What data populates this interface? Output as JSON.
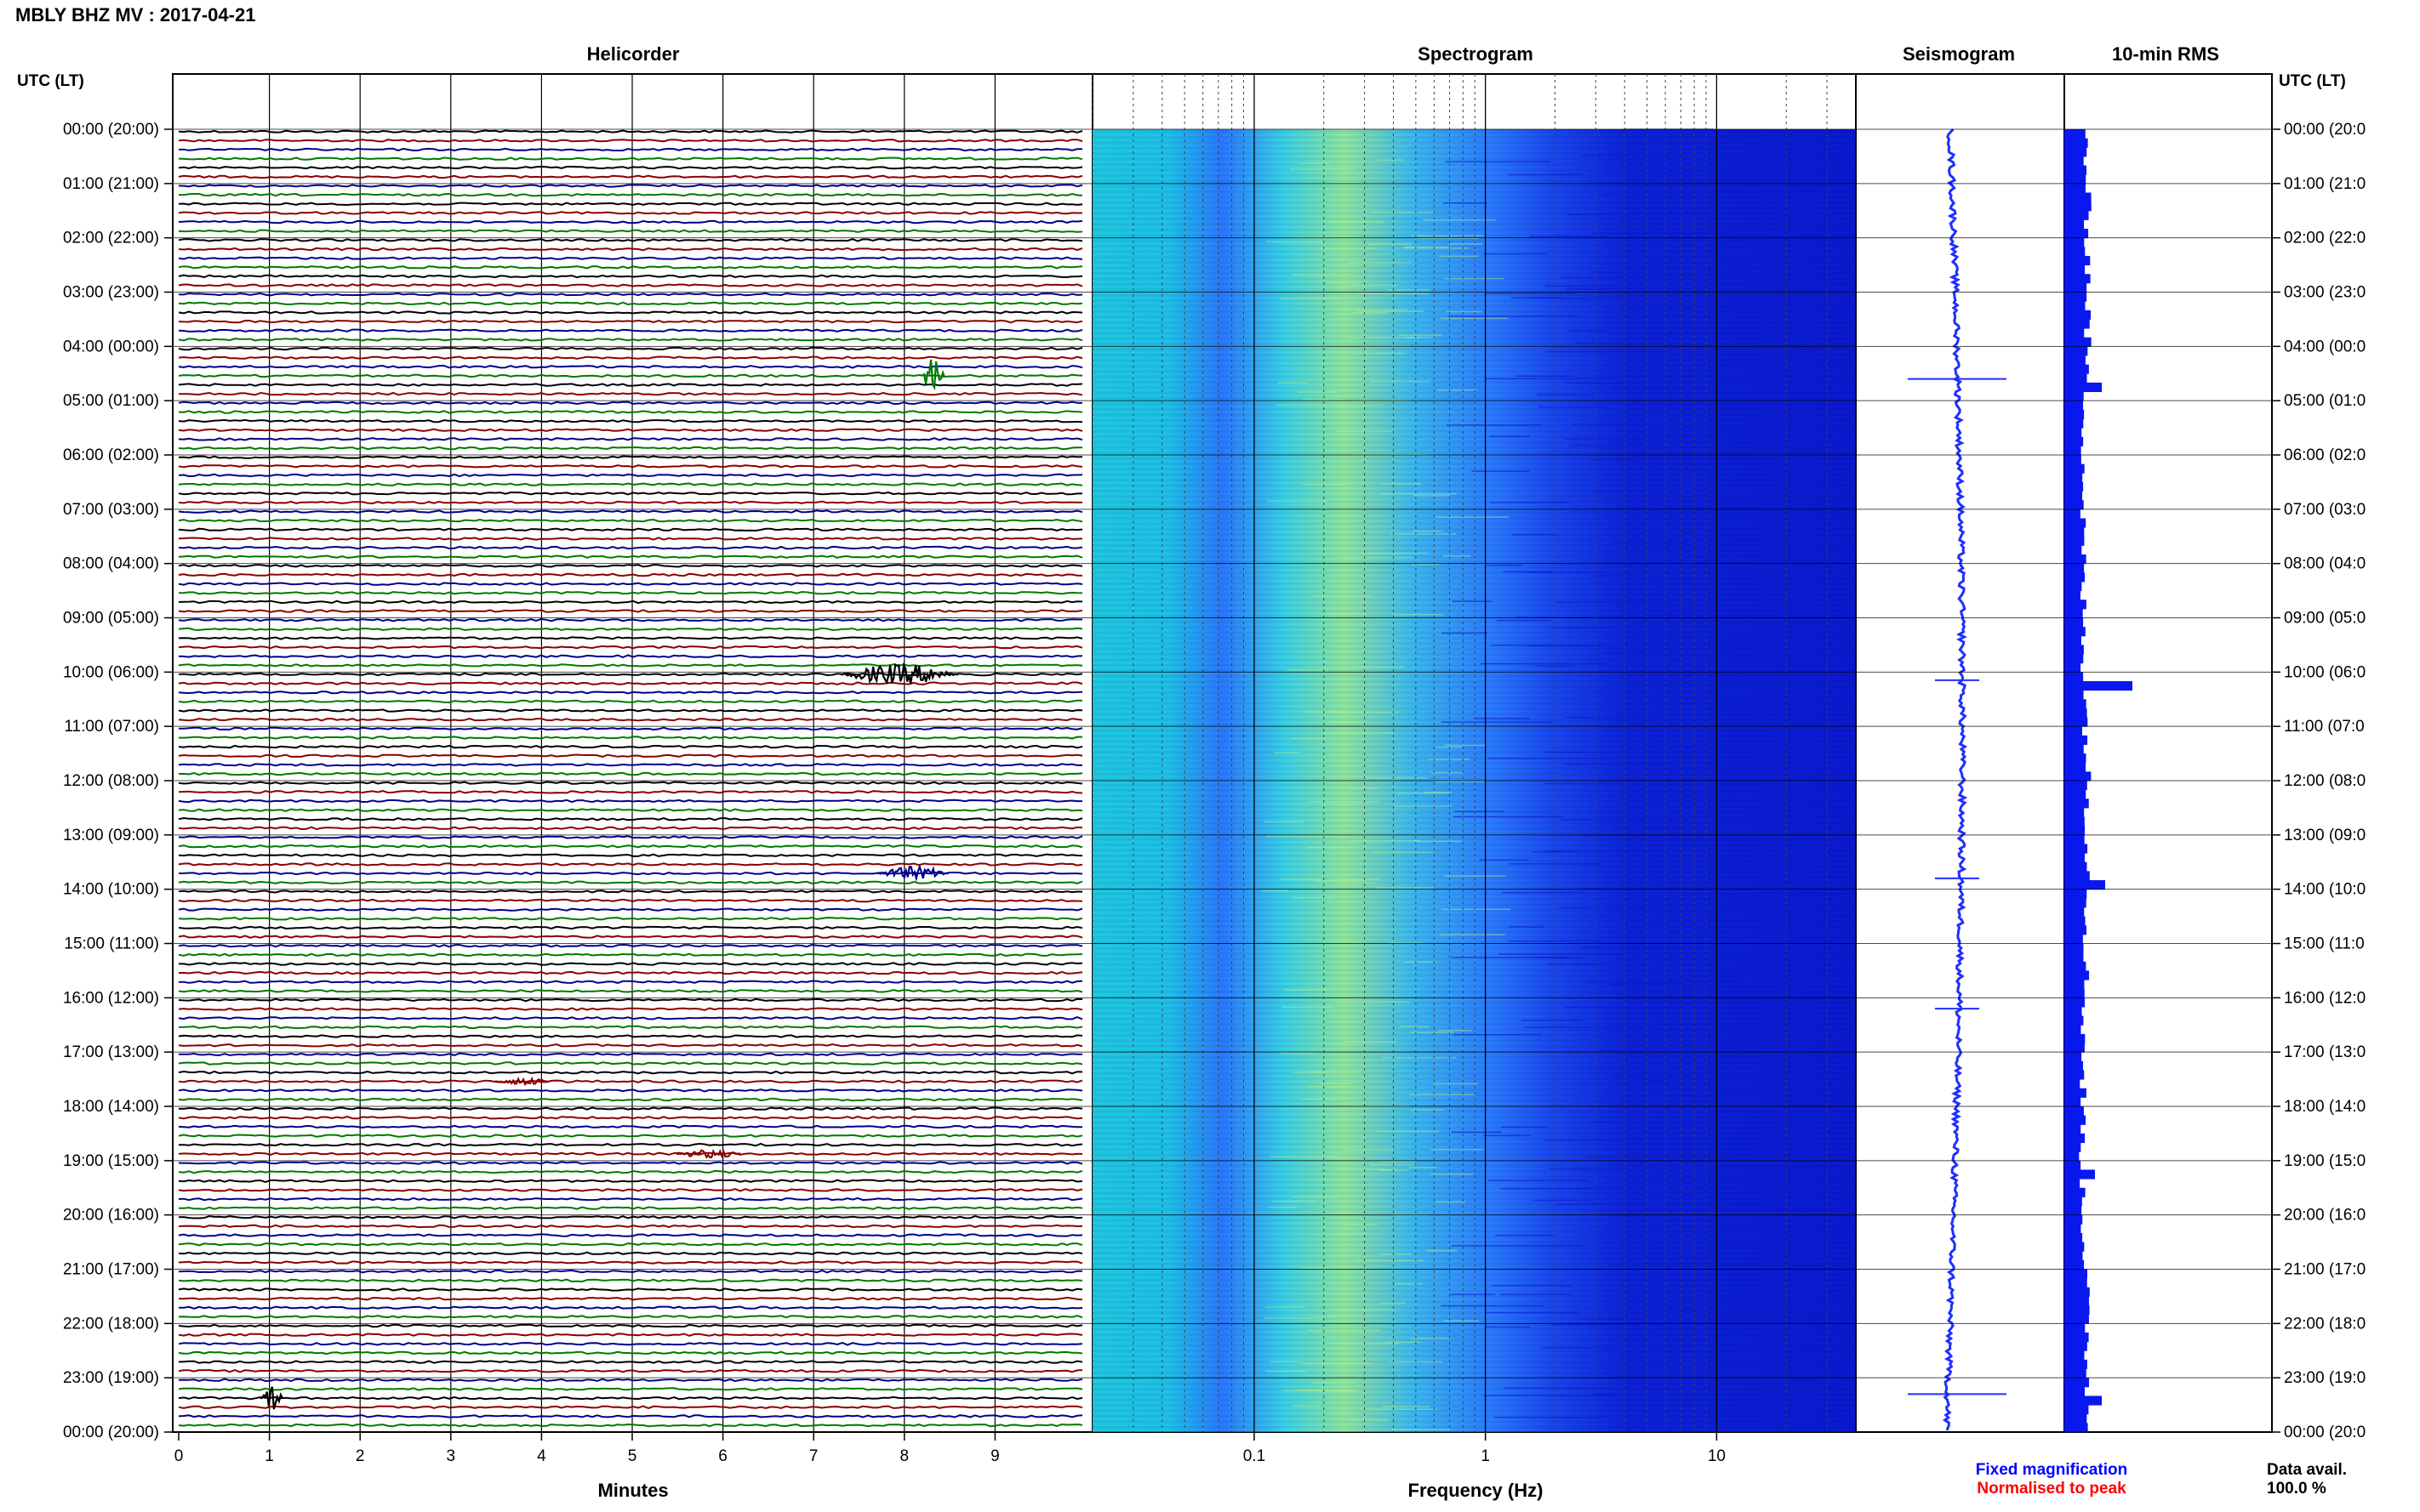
{
  "header": {
    "title": "MBLY BHZ MV : 2017-04-21",
    "utc_left": "UTC (LT)",
    "utc_right": "UTC (LT)"
  },
  "panels": {
    "helicorder": "Helicorder",
    "spectrogram": "Spectrogram",
    "seismogram": "Seismogram",
    "rms": "10-min RMS"
  },
  "footer": {
    "minutes_label": "Minutes",
    "frequency_label": "Frequency (Hz)",
    "fixed_magnification": "Fixed magnification",
    "normalised_to_peak": "Normalised to peak",
    "data_avail_label": "Data avail.",
    "data_avail_value": "100.0 %"
  },
  "colors": {
    "trace_cycle": [
      "#000000",
      "#8b0000",
      "#00008b",
      "#007a00"
    ],
    "seismogram": "#1f2fff",
    "rms": "#0a18f0",
    "fixed_magnification": "#0000ff",
    "normalised_to_peak": "#ff0000"
  },
  "time_labels_left": [
    "00:00 (20:00)",
    "01:00 (21:00)",
    "02:00 (22:00)",
    "03:00 (23:00)",
    "04:00 (00:00)",
    "05:00 (01:00)",
    "06:00 (02:00)",
    "07:00 (03:00)",
    "08:00 (04:00)",
    "09:00 (05:00)",
    "10:00 (06:00)",
    "11:00 (07:00)",
    "12:00 (08:00)",
    "13:00 (09:00)",
    "14:00 (10:00)",
    "15:00 (11:00)",
    "16:00 (12:00)",
    "17:00 (13:00)",
    "18:00 (14:00)",
    "19:00 (15:00)",
    "20:00 (16:00)",
    "21:00 (17:00)",
    "22:00 (18:00)",
    "23:00 (19:00)",
    "00:00 (20:00)"
  ],
  "time_labels_right": [
    "00:00 (20:0",
    "01:00 (21:0",
    "02:00 (22:0",
    "03:00 (23:0",
    "04:00 (00:0",
    "05:00 (01:0",
    "06:00 (02:0",
    "07:00 (03:0",
    "08:00 (04:0",
    "09:00 (05:0",
    "10:00 (06:0",
    "11:00 (07:0",
    "12:00 (08:0",
    "13:00 (09:0",
    "14:00 (10:0",
    "15:00 (11:0",
    "16:00 (12:0",
    "17:00 (13:0",
    "18:00 (14:0",
    "19:00 (15:0",
    "20:00 (16:0",
    "21:00 (17:0",
    "22:00 (18:0",
    "23:00 (19:0",
    "00:00 (20:0"
  ],
  "chart_data": [
    {
      "type": "line",
      "title": "Helicorder",
      "xlabel": "Minutes",
      "x_ticks": [
        "0",
        "1",
        "2",
        "3",
        "4",
        "5",
        "6",
        "7",
        "8",
        "9"
      ],
      "xlim": [
        0,
        10
      ],
      "traces": 144,
      "events": [
        {
          "hour": 4.5,
          "minute": 8.2,
          "amplitude": 3.0
        },
        {
          "hour": 10.05,
          "minute": 7.3,
          "amplitude": 1.5,
          "duration_min": 1.3
        },
        {
          "hour": 13.83,
          "minute": 7.7,
          "amplitude": 1.0,
          "duration_min": 0.8
        },
        {
          "hour": 18.9,
          "minute": 5.5,
          "amplitude": 0.6,
          "duration_min": 0.7
        },
        {
          "hour": 23.4,
          "minute": 0.9,
          "amplitude": 2.0
        },
        {
          "hour": 17.5,
          "minute": 3.5,
          "amplitude": 0.5,
          "duration_min": 0.6
        }
      ]
    },
    {
      "type": "heatmap",
      "title": "Spectrogram",
      "xlabel": "Frequency (Hz)",
      "x_scale": "log",
      "x_ticks": [
        "0.1",
        "1",
        "10"
      ],
      "xlim": [
        0.02,
        40
      ]
    },
    {
      "type": "line",
      "title": "Seismogram",
      "spikes_hour": [
        4.6,
        10.15,
        13.8,
        16.2,
        23.3
      ]
    },
    {
      "type": "bar",
      "title": "10-min RMS",
      "peaks": [
        {
          "hour": 4.6,
          "relative": 0.55
        },
        {
          "hour": 10.15,
          "relative": 1.0
        },
        {
          "hour": 13.8,
          "relative": 0.6
        },
        {
          "hour": 19.1,
          "relative": 0.45
        },
        {
          "hour": 23.3,
          "relative": 0.55
        }
      ]
    }
  ]
}
